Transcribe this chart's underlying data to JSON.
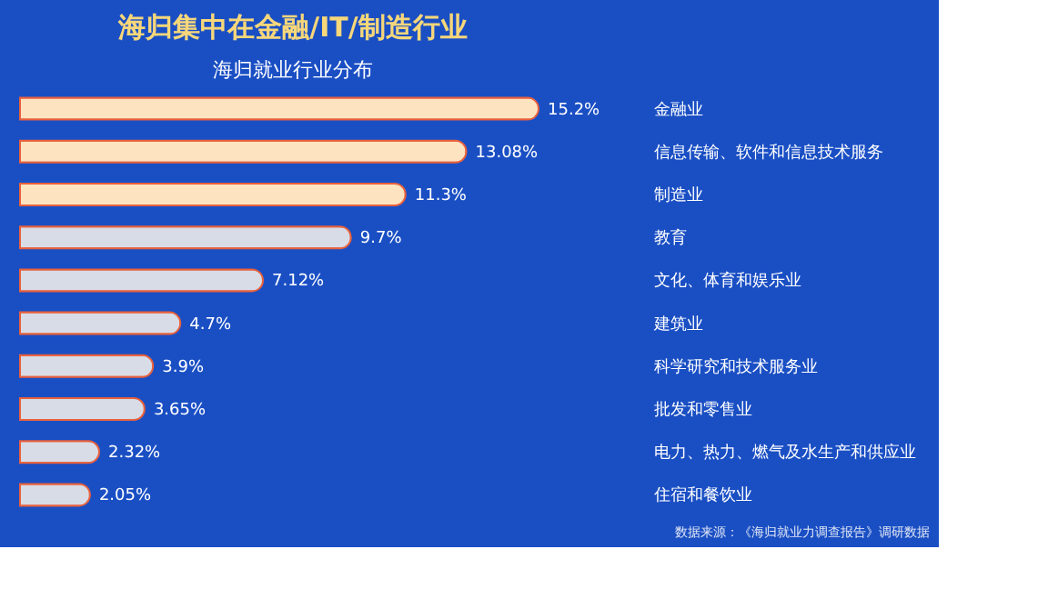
{
  "chart_data": {
    "type": "bar",
    "orientation": "horizontal",
    "title": "海归集中在金融/IT/制造行业",
    "subtitle": "海归就业行业分布",
    "categories": [
      "金融业",
      "信息传输、软件和信息技术服务",
      "制造业",
      "教育",
      "文化、体育和娱乐业",
      "建筑业",
      "科学研究和技术服务业",
      "批发和零售业",
      "电力、热力、燃气及水生产和供应业",
      "住宿和餐饮业"
    ],
    "values": [
      15.2,
      13.08,
      11.3,
      9.7,
      7.12,
      4.7,
      3.9,
      3.65,
      2.32,
      2.05
    ],
    "value_labels": [
      "15.2%",
      "13.08%",
      "11.3%",
      "9.7%",
      "7.12%",
      "4.7%",
      "3.9%",
      "3.65%",
      "2.32%",
      "2.05%"
    ],
    "colors": [
      "#fde3c0",
      "#fde3c0",
      "#fde3c0",
      "#d8dce6",
      "#d8dce6",
      "#d8dce6",
      "#d8dce6",
      "#d8dce6",
      "#d8dce6",
      "#d8dce6"
    ],
    "grid": false,
    "annotations": [
      "数据来源：《海归就业力调查报告》调研数据"
    ]
  }
}
